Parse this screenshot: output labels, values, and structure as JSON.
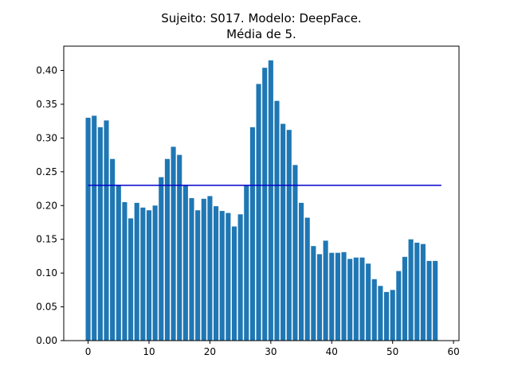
{
  "chart_data": {
    "type": "bar",
    "title_line1": "Sujeito: S017. Modelo: DeepFace.",
    "title_line2": "Média de 5.",
    "xlabel": "",
    "ylabel": "",
    "x": [
      0,
      1,
      2,
      3,
      4,
      5,
      6,
      7,
      8,
      9,
      10,
      11,
      12,
      13,
      14,
      15,
      16,
      17,
      18,
      19,
      20,
      21,
      22,
      23,
      24,
      25,
      26,
      27,
      28,
      29,
      30,
      31,
      32,
      33,
      34,
      35,
      36,
      37,
      38,
      39,
      40,
      41,
      42,
      43,
      44,
      45,
      46,
      47,
      48,
      49,
      50,
      51,
      52,
      53,
      54,
      55,
      56,
      57
    ],
    "values": [
      0.33,
      0.333,
      0.316,
      0.326,
      0.269,
      0.23,
      0.205,
      0.181,
      0.204,
      0.197,
      0.193,
      0.2,
      0.242,
      0.269,
      0.287,
      0.275,
      0.23,
      0.211,
      0.193,
      0.21,
      0.214,
      0.199,
      0.192,
      0.189,
      0.169,
      0.187,
      0.23,
      0.316,
      0.38,
      0.404,
      0.415,
      0.355,
      0.321,
      0.312,
      0.26,
      0.204,
      0.182,
      0.14,
      0.128,
      0.148,
      0.13,
      0.13,
      0.131,
      0.121,
      0.123,
      0.123,
      0.114,
      0.091,
      0.081,
      0.072,
      0.075,
      0.103,
      0.124,
      0.15,
      0.145,
      0.143,
      0.118,
      0.118
    ],
    "mean_line": {
      "value": 0.23,
      "x_start": 0,
      "x_end": 58,
      "color": "#0000cc"
    },
    "bar_color": "#1f77b4",
    "xlim": [
      -4.0,
      60.9
    ],
    "ylim": [
      0,
      0.436
    ],
    "xticks": [
      0,
      10,
      20,
      30,
      40,
      50,
      60
    ],
    "yticks": [
      0.0,
      0.05,
      0.1,
      0.15,
      0.2,
      0.25,
      0.3,
      0.35,
      0.4
    ],
    "grid": false
  }
}
